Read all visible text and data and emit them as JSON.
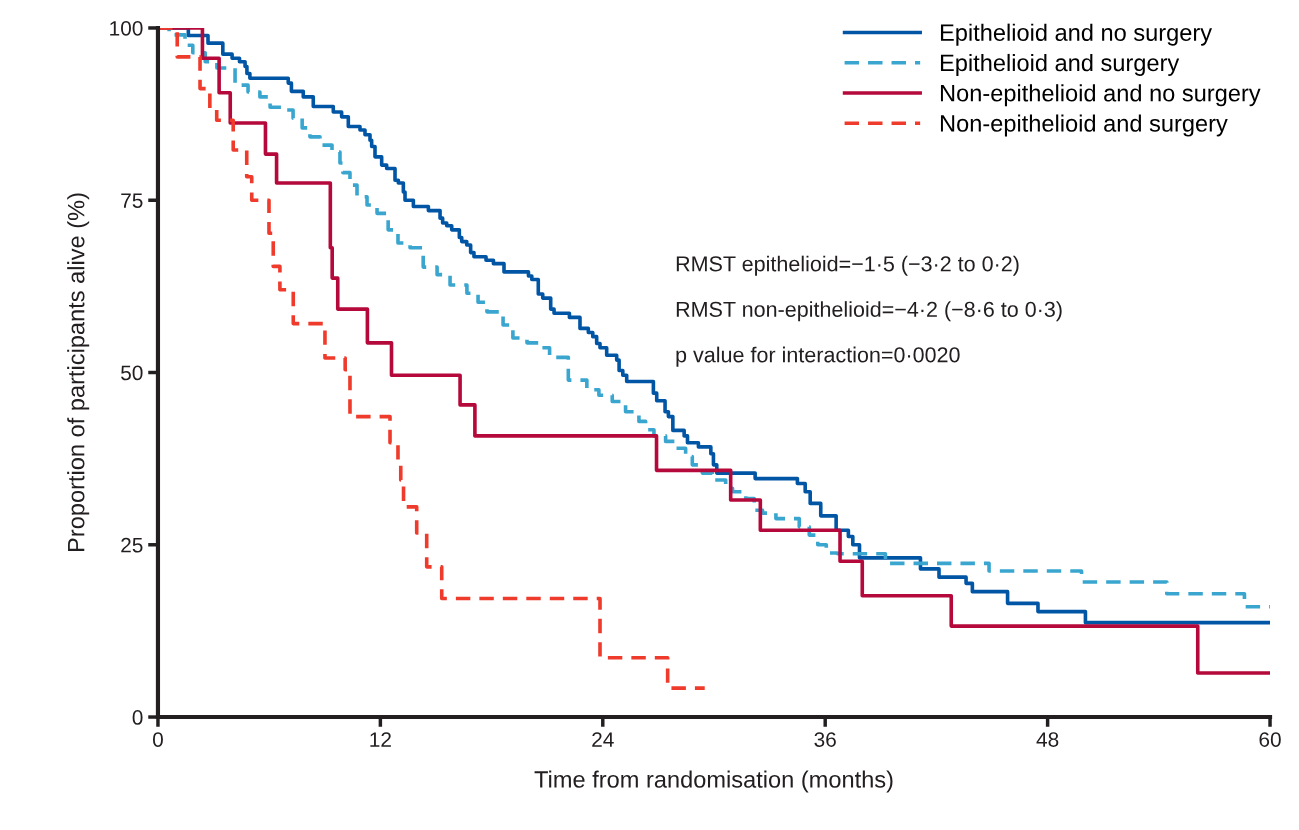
{
  "chart_data": {
    "type": "step",
    "xlabel": "Time from randomisation (months)",
    "ylabel": "Proportion of participants alive (%)",
    "xlim": [
      0,
      60
    ],
    "xticks": [
      0,
      12,
      24,
      36,
      48,
      60
    ],
    "ylim": [
      0,
      100
    ],
    "yticks": [
      0,
      25,
      50,
      75,
      100
    ],
    "grid": false,
    "legend": "top right",
    "annotations": [
      "RMST epithelioid=−1·5 (−3·2 to 0·2)",
      "RMST non-epithelioid=−4·2 (−8·6 to 0·3)",
      "p value for interaction=0·0020"
    ],
    "series": [
      {
        "name": "Epithelioid and no surgery",
        "color": "#0055a4",
        "line_style": "solid",
        "x": [
          0,
          1.64,
          2.7,
          3.5,
          4.0,
          4.4,
          4.7,
          4.8,
          4.96,
          7.03,
          7.2,
          7.84,
          8.38,
          9.46,
          9.91,
          10.27,
          10.9,
          11.17,
          11.44,
          11.53,
          11.71,
          12.07,
          12.34,
          12.79,
          12.97,
          13.24,
          13.33,
          13.78,
          14.59,
          15.22,
          15.36,
          15.58,
          15.85,
          16.26,
          16.39,
          16.66,
          16.87,
          17.05,
          17.7,
          18.1,
          18.67,
          19.99,
          20.17,
          20.52,
          20.76,
          21.19,
          21.37,
          22.2,
          22.77,
          23.22,
          23.46,
          23.67,
          23.85,
          24.21,
          24.75,
          24.88,
          25.08,
          25.29,
          26.73,
          26.91,
          27.36,
          27.54,
          27.78,
          28.39,
          28.57,
          29.16,
          29.83,
          29.97,
          30.15,
          32.22,
          34.5,
          34.92,
          35.19,
          35.76,
          36.59,
          37.25,
          37.49,
          37.85,
          41.14,
          42.14,
          43.6,
          43.94,
          45.84,
          47.48,
          50.04,
          60
        ],
        "values": [
          100,
          98.9,
          97.8,
          96.2,
          95.6,
          95.1,
          94.4,
          93.4,
          92.7,
          92.0,
          90.8,
          90.0,
          88.6,
          87.8,
          87.1,
          85.7,
          85.2,
          84.5,
          83.7,
          82.8,
          81.3,
          80.1,
          79.6,
          77.9,
          77.5,
          76.2,
          75.0,
          74.1,
          73.5,
          72.4,
          71.7,
          71.3,
          70.7,
          69.6,
          69.0,
          68.5,
          67.4,
          66.8,
          66.3,
          65.8,
          64.6,
          64.0,
          63.5,
          61.4,
          60.8,
          59.2,
          58.6,
          58.0,
          56.4,
          55.8,
          55.2,
          54.2,
          53.6,
          52.5,
          51.8,
          50.3,
          49.6,
          48.7,
          47.0,
          45.9,
          44.3,
          43.6,
          41.6,
          40.8,
          39.8,
          39.2,
          38.2,
          36.6,
          35.4,
          34.6,
          33.9,
          32.7,
          31.0,
          29.2,
          27.1,
          26.2,
          25.0,
          23.1,
          21.5,
          20.3,
          19.4,
          18.2,
          16.5,
          15.3,
          13.7,
          13.7
        ]
      },
      {
        "name": "Epithelioid and surgery",
        "color": "#3aa6cf",
        "line_style": "dashed",
        "x": [
          0,
          0.6,
          0.81,
          1.46,
          1.88,
          2.55,
          3.18,
          4.16,
          4.86,
          5.5,
          6.05,
          6.75,
          7.29,
          7.78,
          8.2,
          8.74,
          9.39,
          9.82,
          9.98,
          10.36,
          10.74,
          11.28,
          11.82,
          12.42,
          12.95,
          13.6,
          14.31,
          15.06,
          15.76,
          16.67,
          17.27,
          17.75,
          18.62,
          19.15,
          19.91,
          20.72,
          21.13,
          22.14,
          23.14,
          23.79,
          24.51,
          25.23,
          25.95,
          26.31,
          26.76,
          27.39,
          27.93,
          28.47,
          28.83,
          29.37,
          29.91,
          30.63,
          31.0,
          31.72,
          32.17,
          32.62,
          33.34,
          34.6,
          35.14,
          35.6,
          36.06,
          36.67,
          39.25,
          44.84,
          49.83,
          54.43,
          58.62,
          60
        ],
        "values": [
          100,
          99.5,
          99.0,
          97.5,
          96.4,
          95.1,
          94.2,
          91.7,
          90.7,
          90.0,
          88.5,
          88.1,
          86.9,
          85.5,
          84.2,
          83.0,
          82.0,
          80.4,
          79.0,
          77.2,
          75.5,
          74.3,
          73.1,
          70.7,
          68.8,
          68.1,
          65.3,
          64.2,
          62.7,
          61.5,
          60.2,
          58.8,
          56.9,
          55.0,
          54.3,
          53.6,
          52.2,
          48.9,
          47.5,
          46.7,
          45.8,
          44.3,
          42.9,
          41.7,
          40.8,
          40.0,
          39.0,
          37.8,
          36.6,
          35.4,
          34.4,
          33.2,
          32.7,
          31.7,
          30.0,
          29.6,
          28.8,
          27.6,
          26.4,
          25.0,
          23.8,
          23.7,
          22.3,
          21.2,
          19.6,
          17.9,
          16.0,
          16.0
        ]
      },
      {
        "name": "Non-epithelioid and no surgery",
        "color": "#b5093b",
        "line_style": "solid",
        "x": [
          0,
          2.4,
          3.3,
          3.9,
          5.8,
          6.4,
          9.3,
          9.4,
          9.7,
          11.3,
          12.6,
          16.3,
          17.1,
          26.9,
          30.9,
          32.5,
          36.8,
          38.0,
          42.8,
          56.1,
          60
        ],
        "values": [
          100,
          95.6,
          90.6,
          86.2,
          81.7,
          77.5,
          68.1,
          63.7,
          59.2,
          54.3,
          49.6,
          45.3,
          40.8,
          35.8,
          31.5,
          27.1,
          22.6,
          17.6,
          13.2,
          6.4,
          6.4
        ]
      },
      {
        "name": "Non-epithelioid and surgery",
        "color": "#ef3b2c",
        "line_style": "dashed",
        "x": [
          0,
          1.04,
          2.27,
          2.8,
          3.17,
          4.06,
          4.79,
          5.06,
          5.99,
          6.22,
          6.58,
          7.3,
          8.92,
          9.01,
          10.1,
          10.36,
          12.52,
          12.95,
          13.1,
          13.25,
          13.96,
          14.5,
          15.31,
          23.85,
          27.5,
          29.5
        ],
        "values": [
          100,
          95.8,
          91.2,
          88.1,
          86.6,
          82.3,
          78.4,
          75.0,
          70.2,
          65.4,
          62.0,
          57.1,
          56.4,
          52.1,
          50.4,
          43.6,
          39.8,
          36.9,
          34.4,
          30.5,
          26.7,
          21.8,
          17.2,
          8.6,
          4.2,
          4.2
        ]
      }
    ]
  }
}
